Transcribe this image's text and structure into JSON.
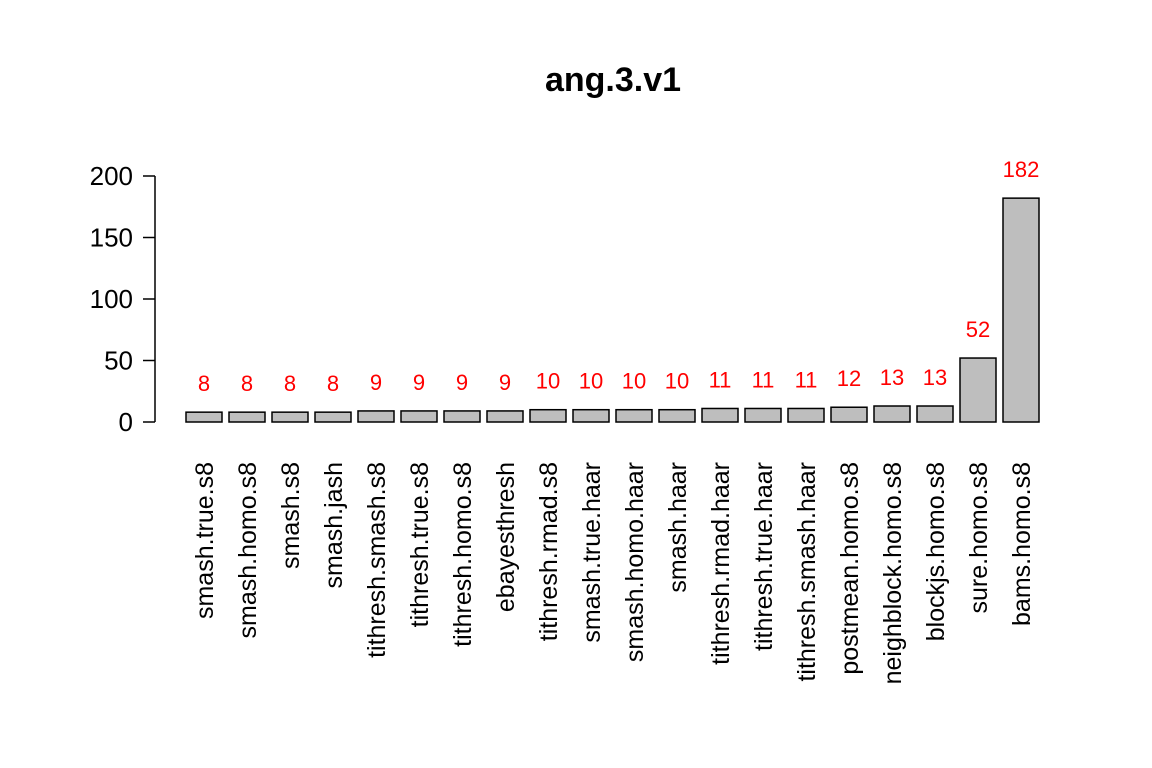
{
  "chart_data": {
    "type": "bar",
    "title": "ang.3.v1",
    "xlabel": "",
    "ylabel": "",
    "categories": [
      "smash.true.s8",
      "smash.homo.s8",
      "smash.s8",
      "smash.jash",
      "tithresh.smash.s8",
      "tithresh.true.s8",
      "tithresh.homo.s8",
      "ebayesthresh",
      "tithresh.rmad.s8",
      "smash.true.haar",
      "smash.homo.haar",
      "smash.haar",
      "tithresh.rmad.haar",
      "tithresh.true.haar",
      "tithresh.smash.haar",
      "postmean.homo.s8",
      "neighblock.homo.s8",
      "blockjs.homo.s8",
      "sure.homo.s8",
      "bams.homo.s8"
    ],
    "values": [
      8,
      8,
      8,
      8,
      9,
      9,
      9,
      9,
      10,
      10,
      10,
      10,
      11,
      11,
      11,
      12,
      13,
      13,
      52,
      182
    ],
    "data_labels": [
      "8",
      "8",
      "8",
      "8",
      "9",
      "9",
      "9",
      "9",
      "10",
      "10",
      "10",
      "10",
      "11",
      "11",
      "11",
      "12",
      "13",
      "13",
      "52",
      "182"
    ],
    "ylim": [
      0,
      200
    ],
    "yticks": [
      0,
      50,
      100,
      150,
      200
    ],
    "ytick_labels": [
      "0",
      "50",
      "100",
      "150",
      "200"
    ],
    "grid": false,
    "legend": "none",
    "bar_color": "#bebebe",
    "bar_edge_color": "#000000",
    "label_color": "#ff0000"
  }
}
